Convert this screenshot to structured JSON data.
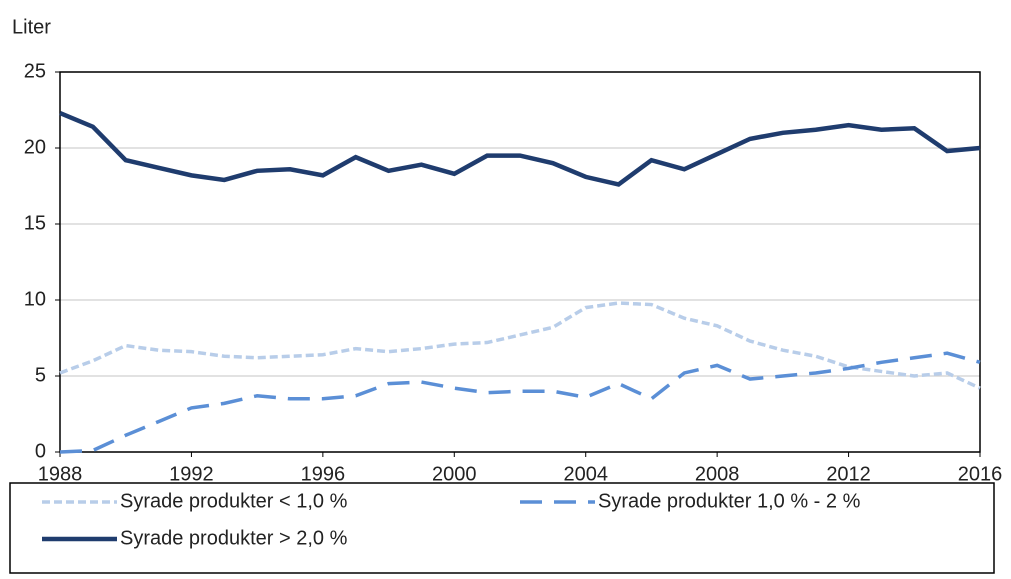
{
  "chart_data": {
    "type": "line",
    "y_label": "Liter",
    "x": [
      1988,
      1989,
      1990,
      1991,
      1992,
      1993,
      1994,
      1995,
      1996,
      1997,
      1998,
      1999,
      2000,
      2001,
      2002,
      2003,
      2004,
      2005,
      2006,
      2007,
      2008,
      2009,
      2010,
      2011,
      2012,
      2013,
      2014,
      2015,
      2016
    ],
    "series": [
      {
        "name": "Syrade produkter < 1,0 %",
        "color": "#b8cde9",
        "dash": "short",
        "values": [
          5.2,
          6.0,
          7.0,
          6.7,
          6.6,
          6.3,
          6.2,
          6.3,
          6.4,
          6.8,
          6.6,
          6.8,
          7.1,
          7.2,
          7.7,
          8.2,
          9.5,
          9.8,
          9.7,
          8.8,
          8.3,
          7.3,
          6.7,
          6.3,
          5.6,
          5.3,
          5.0,
          5.2,
          4.2
        ]
      },
      {
        "name": "Syrade produkter 1,0 % - 2 %",
        "color": "#5b8fd6",
        "dash": "long",
        "values": [
          0,
          0.1,
          1.1,
          2.0,
          2.9,
          3.2,
          3.7,
          3.5,
          3.5,
          3.7,
          4.5,
          4.6,
          4.2,
          3.9,
          4.0,
          4.0,
          3.6,
          4.5,
          3.5,
          5.2,
          5.7,
          4.8,
          5.0,
          5.2,
          5.5,
          5.9,
          6.2,
          6.5,
          5.9
        ]
      },
      {
        "name": "Syrade produkter > 2,0 %",
        "color": "#1f3c6e",
        "dash": "solid",
        "values": [
          22.3,
          21.4,
          19.2,
          18.7,
          18.2,
          17.9,
          18.5,
          18.6,
          18.2,
          19.4,
          18.5,
          18.9,
          18.3,
          19.5,
          19.5,
          19.0,
          18.1,
          17.6,
          19.2,
          18.6,
          19.6,
          20.6,
          21.0,
          21.2,
          21.5,
          21.2,
          21.3,
          19.8,
          20.0
        ]
      }
    ],
    "xlim": [
      1988,
      2016
    ],
    "xticks": [
      1988,
      1992,
      1996,
      2000,
      2004,
      2008,
      2012,
      2016
    ],
    "ylim": [
      0,
      25
    ],
    "yticks": [
      0,
      5,
      10,
      15,
      20,
      25
    ],
    "grid": true
  }
}
